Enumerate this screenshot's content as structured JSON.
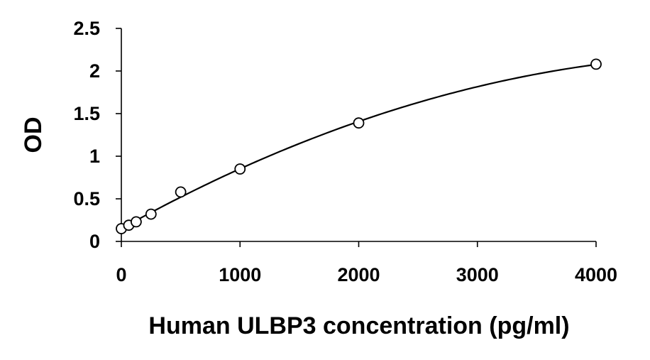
{
  "chart_data": {
    "type": "scatter",
    "title": "",
    "xlabel": "Human ULBP3 concentration (pg/ml)",
    "ylabel": "OD",
    "xlim": [
      0,
      4000
    ],
    "ylim": [
      0,
      2.5
    ],
    "x_ticks": [
      0,
      1000,
      2000,
      3000,
      4000
    ],
    "x_tick_labels": [
      "0",
      "1000",
      "2000",
      "3000",
      "4000"
    ],
    "y_ticks": [
      0,
      0.5,
      1,
      1.5,
      2,
      2.5
    ],
    "y_tick_labels": [
      "0",
      "0.5",
      "1",
      "1.5",
      "2",
      "2.5"
    ],
    "grid": false,
    "legend": "none",
    "series": [
      {
        "marker": "open-circle",
        "fit": "smooth-curve",
        "x": [
          0,
          62.5,
          125,
          250,
          500,
          1000,
          2000,
          4000
        ],
        "y": [
          0.15,
          0.19,
          0.23,
          0.32,
          0.58,
          0.85,
          1.39,
          2.08
        ]
      }
    ],
    "colors": {
      "marker_stroke": "#000000",
      "curve": "#000000",
      "axis": "#000000"
    }
  }
}
